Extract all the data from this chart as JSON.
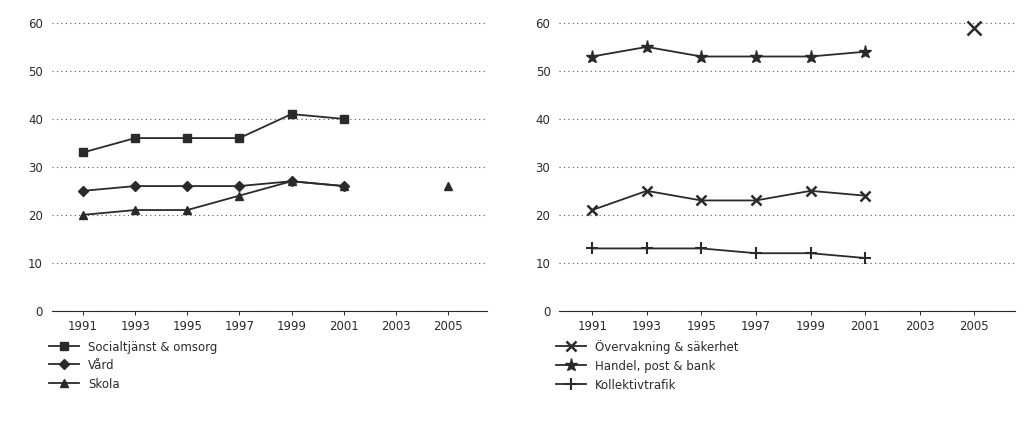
{
  "left_chart": {
    "years_main": [
      1991,
      1993,
      1995,
      1997,
      1999,
      2001
    ],
    "socialtjanst": [
      33,
      36,
      36,
      36,
      41,
      40
    ],
    "vard": [
      25,
      26,
      26,
      26,
      27,
      26
    ],
    "skola": [
      20,
      21,
      21,
      24,
      27,
      26
    ],
    "skola_2005": 26,
    "ylim": [
      0,
      62
    ],
    "yticks": [
      0,
      10,
      20,
      30,
      40,
      50,
      60
    ],
    "xticks": [
      1991,
      1993,
      1995,
      1997,
      1999,
      2001,
      2003,
      2005
    ],
    "legend": [
      "Socialtjänst & omsorg",
      "Vård",
      "Skola"
    ]
  },
  "right_chart": {
    "years_main": [
      1991,
      1993,
      1995,
      1997,
      1999,
      2001
    ],
    "overvakning": [
      21,
      25,
      23,
      23,
      25,
      24
    ],
    "handel": [
      53,
      55,
      53,
      53,
      53,
      54
    ],
    "handel_2005": 59,
    "kollektiv": [
      13,
      13,
      13,
      12,
      12,
      11
    ],
    "ylim": [
      0,
      62
    ],
    "yticks": [
      0,
      10,
      20,
      30,
      40,
      50,
      60
    ],
    "xticks": [
      1991,
      1993,
      1995,
      1997,
      1999,
      2001,
      2003,
      2005
    ],
    "legend": [
      "Övervakning & säkerhet",
      "Handel, post & bank",
      "Kollektivtrafik"
    ]
  },
  "bg_color": "#ffffff",
  "line_color": "#2a2a2a",
  "grid_color": "#555555",
  "tick_fontsize": 8.5,
  "legend_fontsize": 8.5,
  "marker_size": 5.5
}
